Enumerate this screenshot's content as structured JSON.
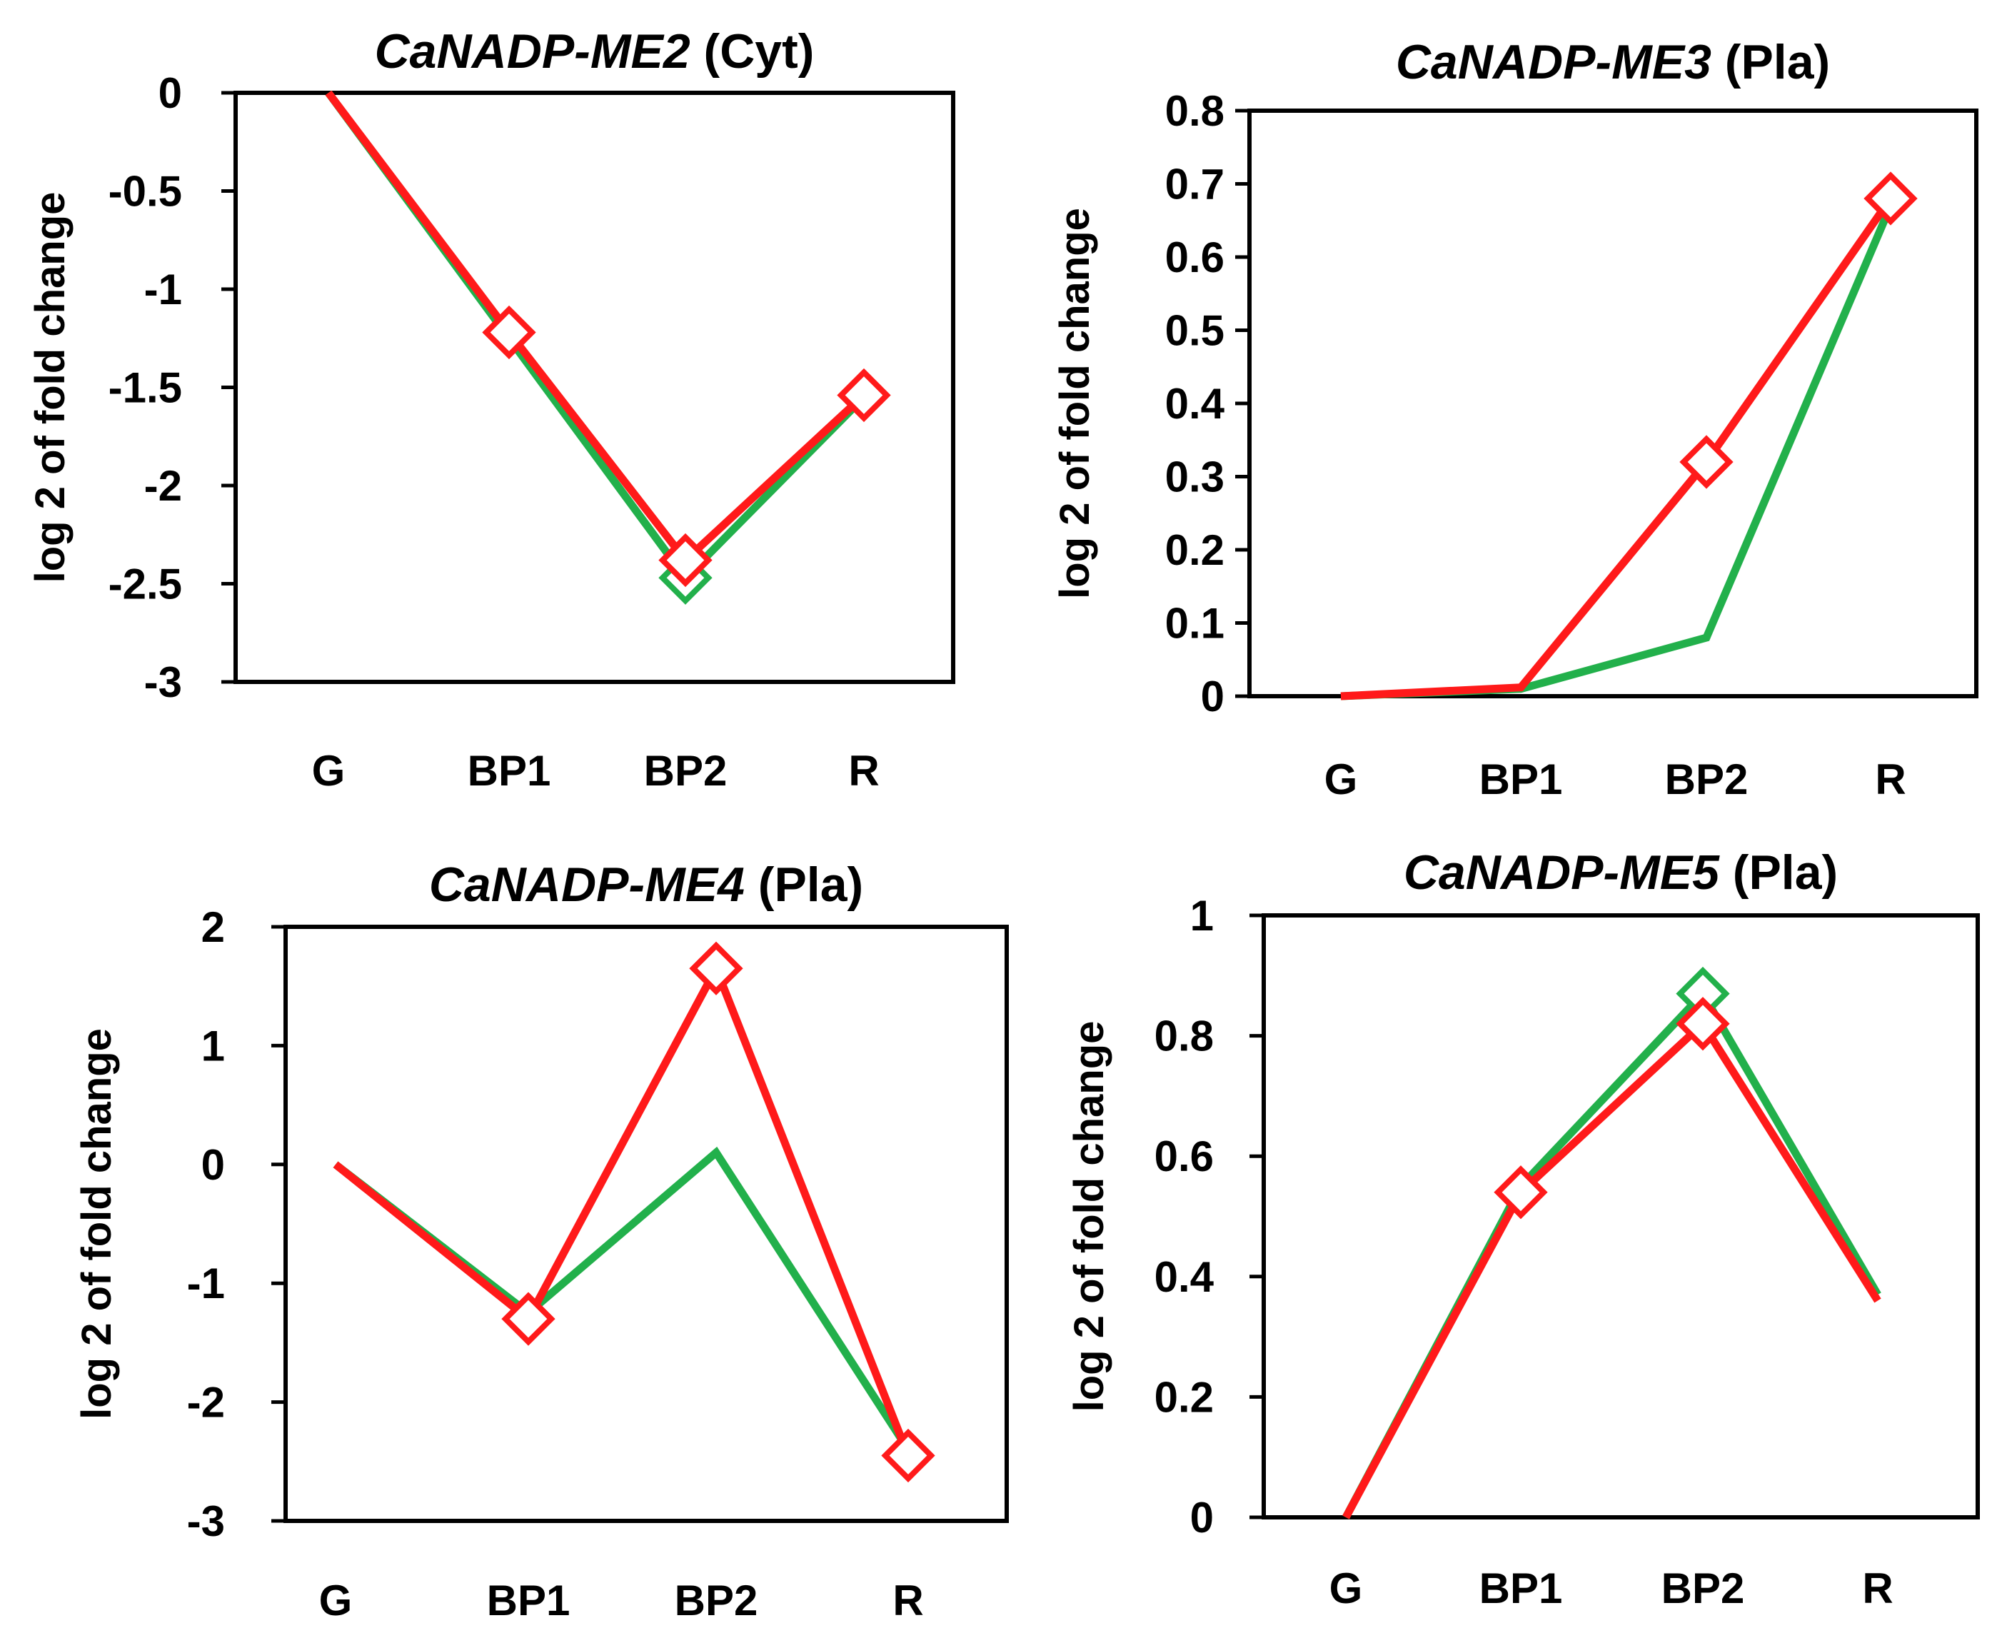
{
  "chart_data": [
    {
      "type": "line",
      "title_gene": "CaNADP-ME2",
      "title_suffix": " (Cyt)",
      "xlabel": "",
      "ylabel": "log 2 of fold change",
      "categories": [
        "G",
        "BP1",
        "BP2",
        "R"
      ],
      "ylim": [
        -3,
        0
      ],
      "yticks": [
        0,
        -0.5,
        -1,
        -1.5,
        -2,
        -2.5,
        -3
      ],
      "ytick_labels": [
        "0",
        "-0.5",
        "-1",
        "-1.5",
        "-2",
        "-2.5",
        "-3"
      ],
      "series": [
        {
          "name": "green",
          "color": "#22b04b",
          "values": [
            0,
            -1.25,
            -2.47,
            -1.55
          ],
          "markers": [
            false,
            false,
            true,
            false
          ]
        },
        {
          "name": "red",
          "color": "#ff1a1a",
          "values": [
            0,
            -1.22,
            -2.38,
            -1.54
          ],
          "markers": [
            false,
            true,
            true,
            true
          ]
        }
      ]
    },
    {
      "type": "line",
      "title_gene": "CaNADP-ME3",
      "title_suffix": " (Pla)",
      "xlabel": "",
      "ylabel": "log 2 of fold change",
      "categories": [
        "G",
        "BP1",
        "BP2",
        "R"
      ],
      "ylim": [
        0,
        0.8
      ],
      "yticks": [
        0.8,
        0.7,
        0.6,
        0.5,
        0.4,
        0.3,
        0.2,
        0.1,
        0
      ],
      "ytick_labels": [
        "0.8",
        "0.7",
        "0.6",
        "0.5",
        "0.4",
        "0.3",
        "0.2",
        "0.1",
        "0"
      ],
      "series": [
        {
          "name": "green",
          "color": "#22b04b",
          "values": [
            0,
            0.01,
            0.08,
            0.67
          ],
          "markers": [
            false,
            false,
            false,
            false
          ]
        },
        {
          "name": "red",
          "color": "#ff1a1a",
          "values": [
            0,
            0.012,
            0.32,
            0.68
          ],
          "markers": [
            false,
            false,
            true,
            true
          ]
        }
      ]
    },
    {
      "type": "line",
      "title_gene": "CaNADP-ME4",
      "title_suffix": " (Pla)",
      "xlabel": "",
      "ylabel": "log 2 of fold change",
      "categories": [
        "G",
        "BP1",
        "BP2",
        "R"
      ],
      "ylim": [
        -3,
        2
      ],
      "yticks": [
        2,
        1,
        0,
        -1,
        -2,
        -3
      ],
      "ytick_labels": [
        "2",
        "1",
        "0",
        "-1",
        "-2",
        "-3"
      ],
      "series": [
        {
          "name": "green",
          "color": "#22b04b",
          "values": [
            0,
            -1.25,
            0.1,
            -2.4
          ],
          "markers": [
            false,
            false,
            false,
            false
          ]
        },
        {
          "name": "red",
          "color": "#ff1a1a",
          "values": [
            0,
            -1.3,
            1.65,
            -2.45
          ],
          "markers": [
            false,
            true,
            true,
            true
          ]
        }
      ]
    },
    {
      "type": "line",
      "title_gene": "CaNADP-ME5",
      "title_suffix": " (Pla)",
      "xlabel": "",
      "ylabel": "log 2 of fold change",
      "categories": [
        "G",
        "BP1",
        "BP2",
        "R"
      ],
      "ylim": [
        0,
        1
      ],
      "yticks": [
        1,
        0.8,
        0.6,
        0.4,
        0.2,
        0
      ],
      "ytick_labels": [
        "1",
        "0.8",
        "0.6",
        "0.4",
        "0.2",
        "0"
      ],
      "series": [
        {
          "name": "green",
          "color": "#22b04b",
          "values": [
            0,
            0.55,
            0.87,
            0.37
          ],
          "markers": [
            false,
            false,
            true,
            false
          ]
        },
        {
          "name": "red",
          "color": "#ff1a1a",
          "values": [
            0,
            0.54,
            0.82,
            0.36
          ],
          "markers": [
            false,
            true,
            true,
            false
          ]
        }
      ]
    }
  ]
}
